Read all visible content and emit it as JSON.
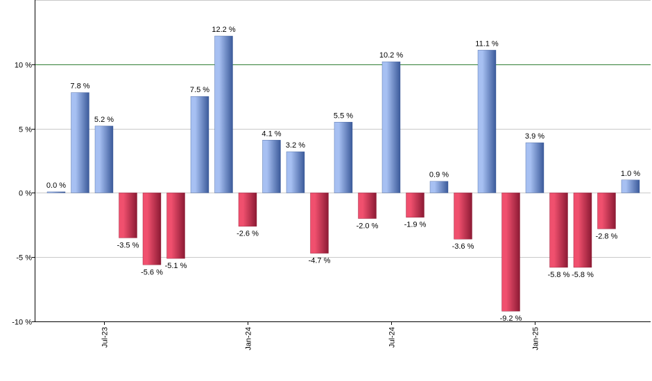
{
  "chart_data": {
    "type": "bar",
    "title": "",
    "xlabel": "",
    "ylabel": "",
    "ylim": [
      -10,
      15
    ],
    "yticks": [
      -10,
      -5,
      0,
      5,
      10
    ],
    "ytick_labels": [
      "-10 %",
      "-5 %",
      "0 %",
      "5 %",
      "10 %"
    ],
    "reference_line": 10,
    "grid": true,
    "legend": "none",
    "xtick_labels": [
      {
        "index": 2,
        "label": "Jul-23"
      },
      {
        "index": 8,
        "label": "Jan-24"
      },
      {
        "index": 14,
        "label": "Jul-24"
      },
      {
        "index": 20,
        "label": "Jan-25"
      }
    ],
    "values": [
      0.0,
      7.8,
      5.2,
      -3.5,
      -5.6,
      -5.1,
      7.5,
      12.2,
      -2.6,
      4.1,
      3.2,
      -4.7,
      5.5,
      -2.0,
      10.2,
      -1.9,
      0.9,
      -3.6,
      11.1,
      -9.2,
      3.9,
      -5.8,
      -5.8,
      -2.8,
      1.0
    ],
    "labels": [
      "0.0 %",
      "7.8 %",
      "5.2 %",
      "-3.5 %",
      "-5.6 %",
      "-5.1 %",
      "7.5 %",
      "12.2 %",
      "-2.6 %",
      "4.1 %",
      "3.2 %",
      "-4.7 %",
      "5.5 %",
      "-2.0 %",
      "10.2 %",
      "-1.9 %",
      "0.9 %",
      "-3.6 %",
      "11.1 %",
      "-9.2 %",
      "3.9 %",
      "-5.8 %",
      "-5.8 %",
      "-2.8 %",
      "1.0 %"
    ],
    "colors": {
      "positive_light": "#a7c0f2",
      "positive_dark": "#3b5a9a",
      "negative_light": "#f0506e",
      "negative_dark": "#8c1a34",
      "reference_line": "#2e7d32",
      "grid": "#c8c8c8",
      "axis": "#000000"
    }
  }
}
